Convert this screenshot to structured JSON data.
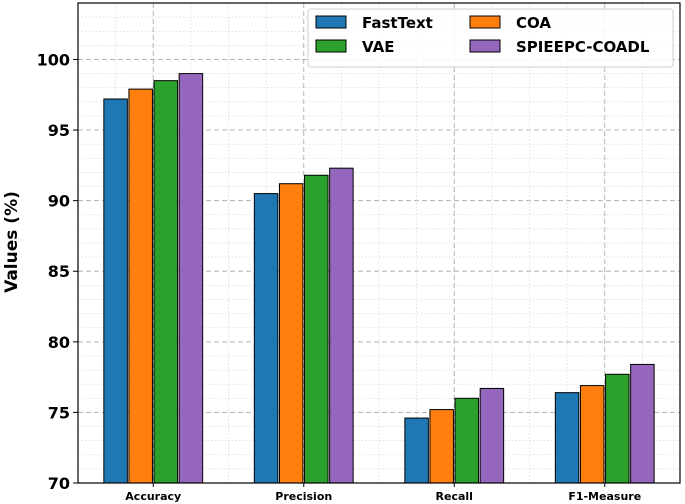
{
  "chart_data": {
    "type": "bar",
    "title": "",
    "xlabel": "",
    "ylabel": "Values (%)",
    "categories": [
      "Accuracy",
      "Precision",
      "Recall",
      "F1-Measure"
    ],
    "series": [
      {
        "name": "FastText",
        "color": "#1f77b4",
        "values": [
          97.2,
          90.5,
          74.6,
          76.4
        ]
      },
      {
        "name": "COA",
        "color": "#ff7f0e",
        "values": [
          97.9,
          91.2,
          75.2,
          76.9
        ]
      },
      {
        "name": "VAE",
        "color": "#2ca02c",
        "values": [
          98.5,
          91.8,
          76.0,
          77.7
        ]
      },
      {
        "name": "SPIEEPC-COADL",
        "color": "#9467bd",
        "values": [
          99.0,
          92.3,
          76.7,
          78.4
        ]
      }
    ],
    "ylim": [
      70,
      104
    ],
    "yticks": [
      70,
      75,
      80,
      85,
      90,
      95,
      100
    ],
    "grid": true,
    "legend_position": "top-right",
    "legend_columns": 2
  }
}
